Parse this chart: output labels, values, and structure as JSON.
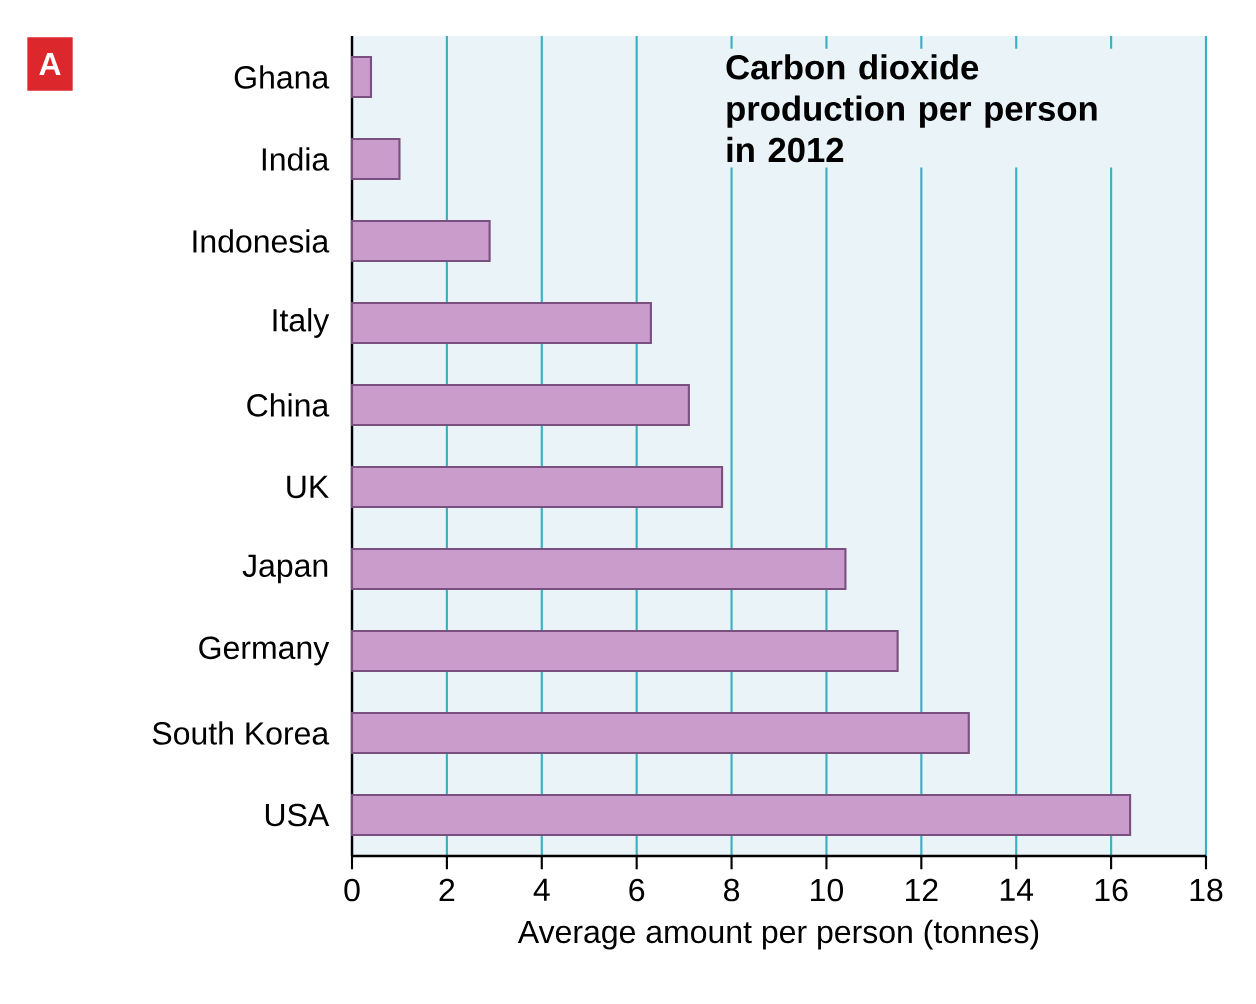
{
  "chart_data": {
    "type": "bar",
    "orientation": "horizontal",
    "title": "Carbon dioxide production per person in 2012",
    "xlabel": "Average amount per person (tonnes)",
    "annotations": [
      "A"
    ],
    "categories": [
      "Ghana",
      "India",
      "Indonesia",
      "Italy",
      "China",
      "UK",
      "Japan",
      "Germany",
      "South Korea",
      "USA"
    ],
    "values": [
      0.4,
      1.0,
      2.9,
      6.3,
      7.1,
      7.8,
      10.4,
      11.5,
      13.0,
      16.4
    ],
    "color": "#c99ccc",
    "xlim": [
      0,
      18
    ],
    "xticks": [
      0,
      2,
      4,
      6,
      8,
      10,
      12,
      14,
      16,
      18
    ],
    "grid": "x"
  }
}
